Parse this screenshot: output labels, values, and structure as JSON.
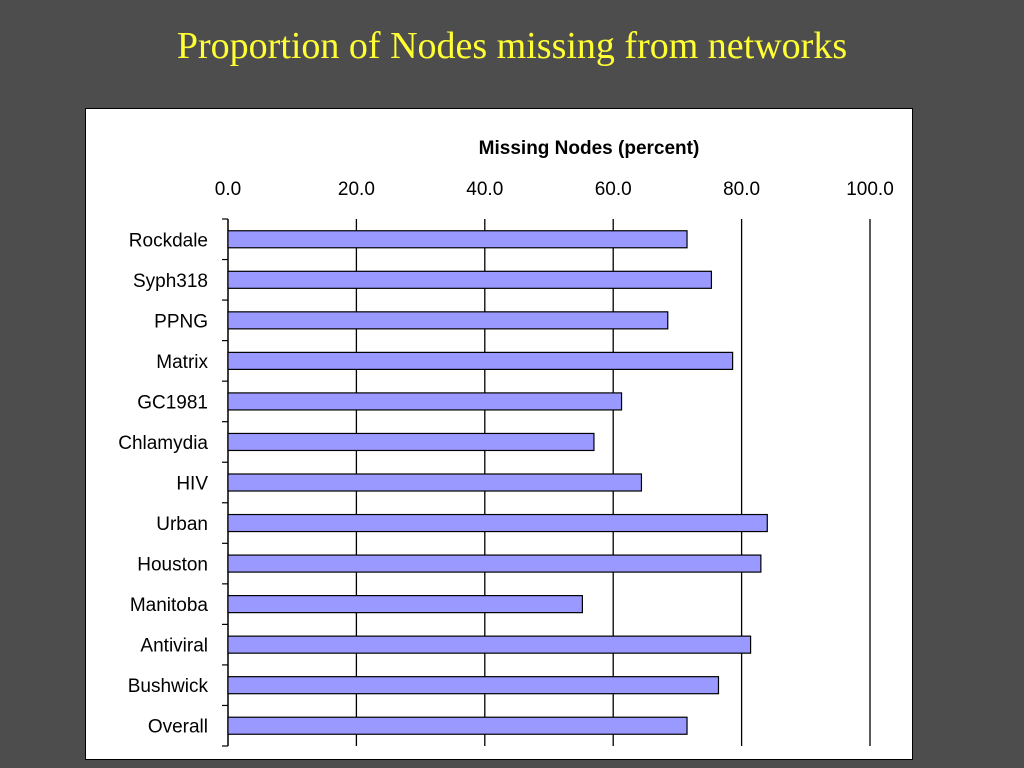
{
  "slide": {
    "title": "Proportion of Nodes missing from networks"
  },
  "colors": {
    "background": "#4d4d4d",
    "title": "#ffff33",
    "bar_fill": "#9999ff",
    "bar_stroke": "#000000"
  },
  "chart_data": {
    "type": "bar",
    "orientation": "horizontal",
    "title": "",
    "xlabel": "Missing Nodes (percent)",
    "ylabel": "",
    "xlim": [
      0,
      100
    ],
    "x_ticks": [
      "0.0",
      "20.0",
      "40.0",
      "60.0",
      "80.0",
      "100.0"
    ],
    "x_axis_position": "top",
    "grid": "vertical",
    "categories": [
      "Rockdale",
      "Syph318",
      "PPNG",
      "Matrix",
      "GC1981",
      "Chlamydia",
      "HIV",
      "Urban",
      "Houston",
      "Manitoba",
      "Antiviral",
      "Bushwick",
      "Overall"
    ],
    "values": [
      71.5,
      75.3,
      68.5,
      78.6,
      61.3,
      57.0,
      64.4,
      84.0,
      83.0,
      55.2,
      81.4,
      76.4,
      71.5
    ]
  }
}
